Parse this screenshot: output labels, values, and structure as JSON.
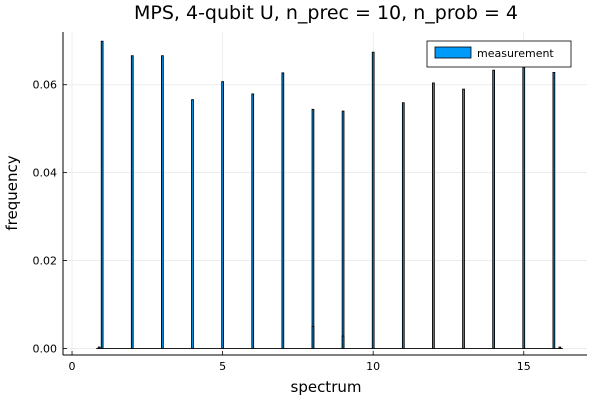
{
  "chart_data": {
    "type": "bar",
    "title": "MPS, 4-qubit U, n_prec = 10, n_prob = 4",
    "xlabel": "spectrum",
    "ylabel": "frequency",
    "xlim": [
      -0.3,
      17.1
    ],
    "ylim": [
      -0.0015,
      0.072
    ],
    "xticks": [
      0,
      5,
      10,
      15
    ],
    "xtick_labels": [
      "0",
      "5",
      "10",
      "15"
    ],
    "yticks": [
      0.0,
      0.02,
      0.04,
      0.06
    ],
    "ytick_labels": [
      "0.00",
      "0.02",
      "0.04",
      "0.06"
    ],
    "grid": true,
    "legend_position": "top-right",
    "series": [
      {
        "name": "measurement",
        "color": "#009af9",
        "x": [
          1,
          2,
          3,
          4,
          5,
          6,
          7,
          8,
          9,
          10,
          11,
          12,
          13,
          14,
          15,
          16
        ],
        "values": [
          0.0699,
          0.0666,
          0.0666,
          0.0566,
          0.0607,
          0.0579,
          0.0627,
          0.0544,
          0.054,
          0.0674,
          0.0559,
          0.0604,
          0.059,
          0.0633,
          0.0668,
          0.0628
        ]
      },
      {
        "name": "",
        "color": "#009af9",
        "x": [
          8.0,
          9.0,
          0.9,
          16.2
        ],
        "values": [
          0.005,
          0.0028,
          0.0003,
          0.0003
        ]
      }
    ]
  }
}
